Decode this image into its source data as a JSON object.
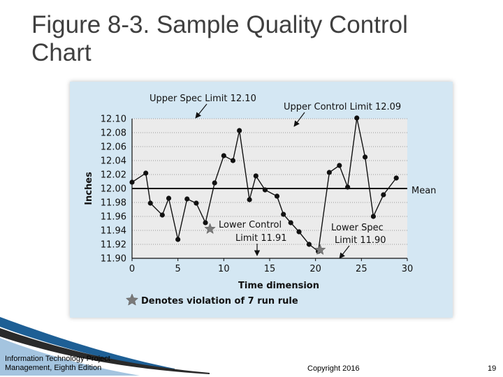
{
  "slide": {
    "title": "Figure 8-3. Sample Quality Control\nChart",
    "footer_left": "Information Technology Project Management, Eighth Edition",
    "footer_center": "Copyright 2016",
    "page_number": "19"
  },
  "colors": {
    "panel_bg": "#d4e7f3",
    "plot_bg": "#ebebeb",
    "point": "#111111",
    "violation_star": "#7a7a7a"
  },
  "chart_data": {
    "type": "line",
    "title": "",
    "xlabel": "Time dimension",
    "ylabel": "Inches",
    "xlim": [
      0,
      30
    ],
    "ylim": [
      11.9,
      12.1
    ],
    "x_ticks": [
      0,
      5,
      10,
      15,
      20,
      25,
      30
    ],
    "x_tick_labels": [
      "0",
      "5",
      "10",
      "15",
      "20",
      "25",
      "30"
    ],
    "y_ticks": [
      11.9,
      11.92,
      11.94,
      11.96,
      11.98,
      12.0,
      12.02,
      12.04,
      12.06,
      12.08,
      12.1
    ],
    "y_tick_labels": [
      "11.90",
      "11.92",
      "11.94",
      "11.96",
      "11.98",
      "12.00",
      "12.02",
      "12.04",
      "12.06",
      "12.08",
      "12.10"
    ],
    "grid": true,
    "series": [
      {
        "x": [
          0,
          1.5,
          2,
          3.3,
          4,
          5,
          6,
          7,
          8,
          9,
          10,
          11,
          11.7,
          12.8,
          13.5,
          14.5,
          15.8,
          16.5,
          17.3,
          18.2,
          19.3,
          20.3,
          21.5,
          22.6,
          23.5,
          24.5,
          25.4,
          26.3,
          27.4,
          28.8
        ],
        "y": [
          12.009,
          12.022,
          11.979,
          11.962,
          11.986,
          11.927,
          11.985,
          11.979,
          11.951,
          12.008,
          12.047,
          12.04,
          12.083,
          11.984,
          12.018,
          11.998,
          11.989,
          11.963,
          11.951,
          11.938,
          11.92,
          11.91,
          12.023,
          12.033,
          12.002,
          12.101,
          12.045,
          11.96,
          11.991,
          12.015
        ]
      }
    ],
    "lines": {
      "mean": {
        "label": "Mean",
        "value": 12.0
      },
      "upper_control_limit": {
        "label": "Upper Control Limit 12.09",
        "value": 12.09
      },
      "lower_control_limit": {
        "label_line1": "Lower Control",
        "label_line2": "Limit 11.91",
        "value": 11.91
      },
      "upper_spec_limit": {
        "label": "Upper Spec Limit 12.10",
        "value": 12.1
      },
      "lower_spec_limit": {
        "label_line1": "Lower Spec",
        "label_line2": "Limit 11.90",
        "value": 11.9
      }
    },
    "violations": [
      {
        "x": 8.5,
        "y": 11.942
      },
      {
        "x": 20.5,
        "y": 11.912
      }
    ],
    "legend": {
      "label": "Denotes violation of 7 run rule",
      "position": "bottom-left"
    }
  }
}
